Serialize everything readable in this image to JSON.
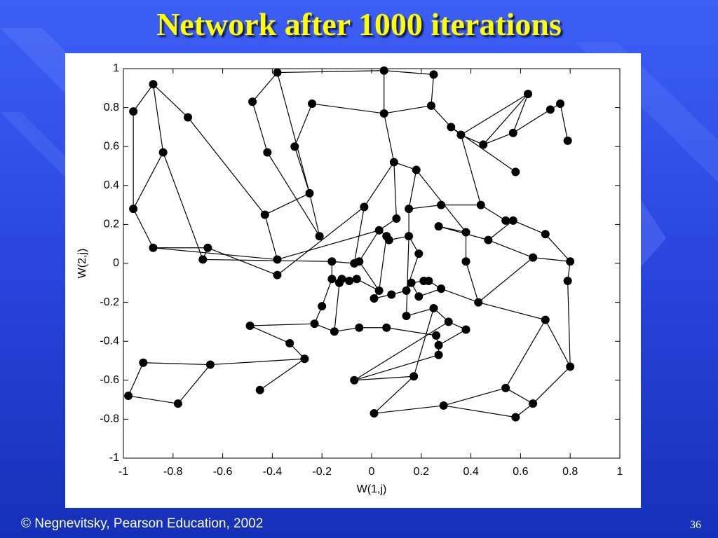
{
  "chart_data": {
    "type": "network",
    "title": "Network after 1000 iterations",
    "xlabel": "W(1,j)",
    "ylabel": "W(2,j)",
    "x": [
      -0.96,
      -0.88,
      -0.74,
      -0.84,
      -0.96,
      -0.88,
      -0.66,
      -0.68,
      -0.38,
      -0.48,
      -0.42,
      -0.31,
      -0.24,
      -0.25,
      -0.43,
      -0.21,
      -0.38,
      -0.38,
      0.05,
      0.25,
      0.05,
      0.24,
      0.32,
      0.36,
      0.63,
      0.76,
      0.72,
      0.57,
      0.45,
      0.79,
      0.58,
      0.09,
      0.18,
      -0.03,
      0.1,
      0.15,
      0.28,
      0.44,
      0.54,
      0.57,
      0.7,
      0.38,
      0.27,
      0.47,
      0.03,
      0.06,
      0.07,
      0.15,
      0.19,
      0.38,
      0.65,
      0.8,
      0.79,
      -0.16,
      -0.07,
      -0.05,
      -0.16,
      -0.13,
      -0.12,
      -0.09,
      -0.06,
      0.03,
      0.01,
      0.08,
      0.14,
      0.16,
      0.21,
      0.23,
      0.19,
      0.28,
      0.14,
      0.25,
      0.43,
      -0.2,
      -0.23,
      -0.15,
      -0.05,
      0.06,
      0.31,
      0.38,
      0.26,
      0.27,
      0.27,
      0.7,
      -0.49,
      -0.33,
      -0.27,
      -0.45,
      -0.65,
      -0.92,
      -0.98,
      -0.78,
      -0.07,
      0.17,
      0.01,
      0.29,
      0.54,
      0.65,
      0.58,
      0.8
    ],
    "y": [
      0.78,
      0.92,
      0.75,
      0.57,
      0.28,
      0.08,
      0.08,
      0.02,
      0.98,
      0.83,
      0.57,
      0.6,
      0.82,
      0.36,
      0.25,
      0.14,
      0.02,
      -0.06,
      0.99,
      0.97,
      0.77,
      0.81,
      0.7,
      0.66,
      0.87,
      0.82,
      0.79,
      0.67,
      0.61,
      0.63,
      0.47,
      0.52,
      0.48,
      0.29,
      0.23,
      0.28,
      0.3,
      0.3,
      0.22,
      0.22,
      0.15,
      0.16,
      0.19,
      0.12,
      0.17,
      0.14,
      0.12,
      0.14,
      0.05,
      0.01,
      0.03,
      0.01,
      -0.09,
      0.01,
      0.0,
      0.01,
      -0.08,
      -0.1,
      -0.08,
      -0.09,
      -0.08,
      -0.14,
      -0.18,
      -0.16,
      -0.14,
      -0.1,
      -0.09,
      -0.09,
      -0.17,
      -0.13,
      -0.27,
      -0.23,
      -0.2,
      -0.22,
      -0.31,
      -0.35,
      -0.33,
      -0.33,
      -0.3,
      -0.34,
      -0.37,
      -0.42,
      -0.47,
      -0.29,
      -0.32,
      -0.41,
      -0.49,
      -0.65,
      -0.52,
      -0.51,
      -0.68,
      -0.72,
      -0.6,
      -0.58,
      -0.77,
      -0.73,
      -0.64,
      -0.72,
      -0.79,
      -0.53
    ],
    "edges": [
      [
        0,
        1
      ],
      [
        0,
        4
      ],
      [
        1,
        3
      ],
      [
        1,
        2
      ],
      [
        2,
        14
      ],
      [
        3,
        4
      ],
      [
        3,
        7
      ],
      [
        4,
        5
      ],
      [
        5,
        16
      ],
      [
        5,
        6
      ],
      [
        6,
        17
      ],
      [
        6,
        7
      ],
      [
        7,
        53
      ],
      [
        8,
        9
      ],
      [
        8,
        18
      ],
      [
        8,
        13
      ],
      [
        9,
        10
      ],
      [
        10,
        15
      ],
      [
        11,
        12
      ],
      [
        11,
        13
      ],
      [
        12,
        20
      ],
      [
        13,
        14
      ],
      [
        13,
        15
      ],
      [
        14,
        16
      ],
      [
        17,
        33
      ],
      [
        18,
        19
      ],
      [
        18,
        20
      ],
      [
        19,
        21
      ],
      [
        20,
        21
      ],
      [
        20,
        31
      ],
      [
        21,
        22
      ],
      [
        22,
        23
      ],
      [
        22,
        30
      ],
      [
        23,
        28
      ],
      [
        23,
        24
      ],
      [
        23,
        37
      ],
      [
        24,
        27
      ],
      [
        24,
        28
      ],
      [
        25,
        26
      ],
      [
        25,
        29
      ],
      [
        26,
        27
      ],
      [
        27,
        28
      ],
      [
        31,
        32
      ],
      [
        31,
        34
      ],
      [
        31,
        33
      ],
      [
        32,
        35
      ],
      [
        32,
        41
      ],
      [
        33,
        54
      ],
      [
        34,
        44
      ],
      [
        35,
        36
      ],
      [
        35,
        47
      ],
      [
        36,
        37
      ],
      [
        37,
        38
      ],
      [
        38,
        39
      ],
      [
        39,
        40
      ],
      [
        40,
        51
      ],
      [
        39,
        43
      ],
      [
        41,
        42
      ],
      [
        42,
        43
      ],
      [
        41,
        49
      ],
      [
        43,
        50
      ],
      [
        50,
        51
      ],
      [
        51,
        52
      ],
      [
        52,
        99
      ],
      [
        50,
        72
      ],
      [
        49,
        72
      ],
      [
        44,
        45
      ],
      [
        45,
        46
      ],
      [
        46,
        47
      ],
      [
        47,
        48
      ],
      [
        48,
        64
      ],
      [
        44,
        55
      ],
      [
        54,
        55
      ],
      [
        55,
        61
      ],
      [
        53,
        56
      ],
      [
        53,
        54
      ],
      [
        56,
        57
      ],
      [
        57,
        58
      ],
      [
        58,
        59
      ],
      [
        59,
        60
      ],
      [
        60,
        61
      ],
      [
        61,
        62
      ],
      [
        62,
        63
      ],
      [
        63,
        64
      ],
      [
        64,
        65
      ],
      [
        65,
        66
      ],
      [
        66,
        67
      ],
      [
        67,
        69
      ],
      [
        68,
        69
      ],
      [
        68,
        65
      ],
      [
        69,
        72
      ],
      [
        70,
        71
      ],
      [
        70,
        47
      ],
      [
        71,
        78
      ],
      [
        78,
        79
      ],
      [
        79,
        81
      ],
      [
        80,
        81
      ],
      [
        81,
        82
      ],
      [
        80,
        77
      ],
      [
        77,
        76
      ],
      [
        76,
        75
      ],
      [
        75,
        74
      ],
      [
        74,
        73
      ],
      [
        73,
        56
      ],
      [
        75,
        57
      ],
      [
        74,
        84
      ],
      [
        84,
        85
      ],
      [
        85,
        86
      ],
      [
        86,
        87
      ],
      [
        86,
        88
      ],
      [
        88,
        89
      ],
      [
        89,
        90
      ],
      [
        90,
        91
      ],
      [
        91,
        88
      ],
      [
        92,
        93
      ],
      [
        92,
        78
      ],
      [
        93,
        94
      ],
      [
        93,
        71
      ],
      [
        94,
        95
      ],
      [
        95,
        96
      ],
      [
        96,
        83
      ],
      [
        83,
        99
      ],
      [
        99,
        97
      ],
      [
        97,
        98
      ],
      [
        98,
        95
      ],
      [
        96,
        97
      ],
      [
        83,
        72
      ],
      [
        82,
        92
      ],
      [
        61,
        45
      ],
      [
        16,
        44
      ]
    ],
    "color": "#000000",
    "xlim": [
      -1,
      1
    ],
    "ylim": [
      -1,
      1
    ],
    "xticks": [
      -1,
      -0.8,
      -0.6,
      -0.4,
      -0.2,
      0,
      0.2,
      0.4,
      0.6,
      0.8,
      1
    ],
    "yticks": [
      -1,
      -0.8,
      -0.6,
      -0.4,
      -0.2,
      0,
      0.2,
      0.4,
      0.6,
      0.8,
      1
    ],
    "grid": false
  },
  "footer": {
    "copyright": "© Negnevitsky, Pearson Education, 2002",
    "page": "36"
  }
}
